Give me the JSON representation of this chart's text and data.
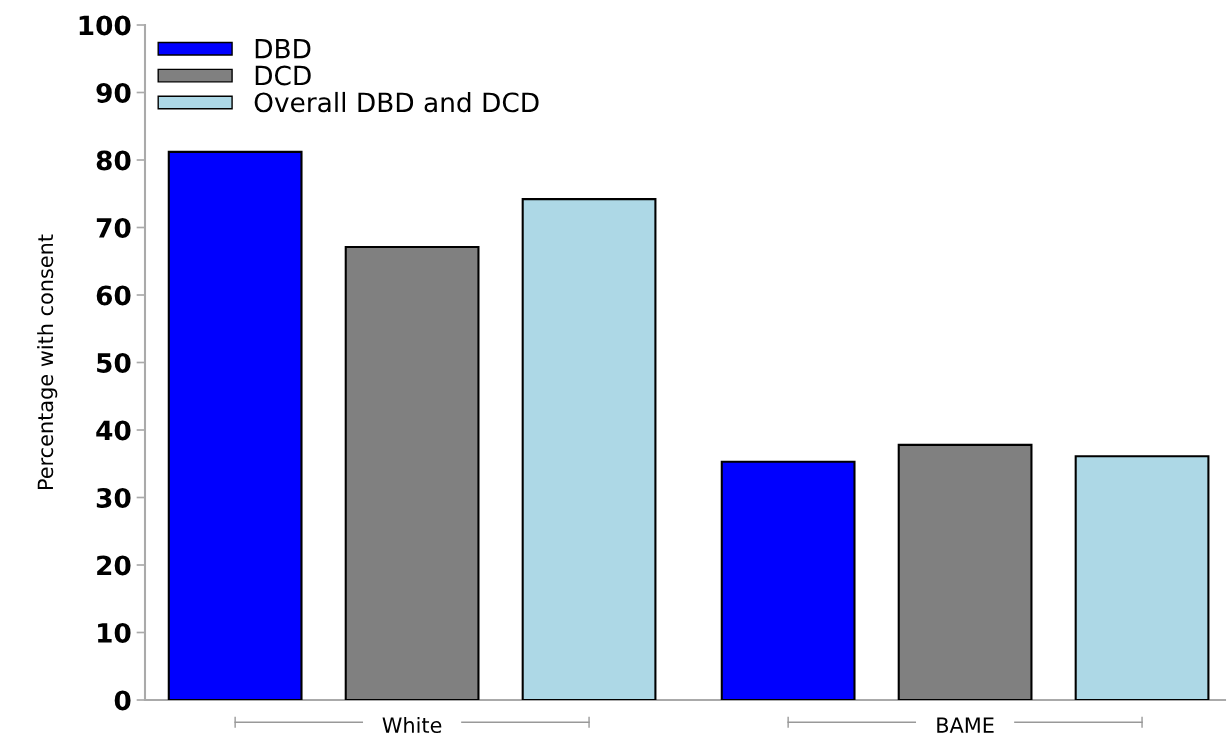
{
  "chart_data": {
    "type": "bar",
    "ylabel": "Percentage with consent",
    "categories": [
      "White",
      "BAME"
    ],
    "series": [
      {
        "name": "DBD",
        "color": "#0000ff",
        "values": [
          81.2,
          35.3
        ]
      },
      {
        "name": "DCD",
        "color": "#808080",
        "values": [
          67.1,
          37.8
        ]
      },
      {
        "name": "Overall DBD and DCD",
        "color": "#add8e6",
        "values": [
          74.2,
          36.1
        ]
      }
    ],
    "ylim": [
      0,
      100
    ],
    "yticks": [
      0,
      10,
      20,
      30,
      40,
      50,
      60,
      70,
      80,
      90,
      100
    ],
    "grid": false,
    "legend": "top left"
  }
}
